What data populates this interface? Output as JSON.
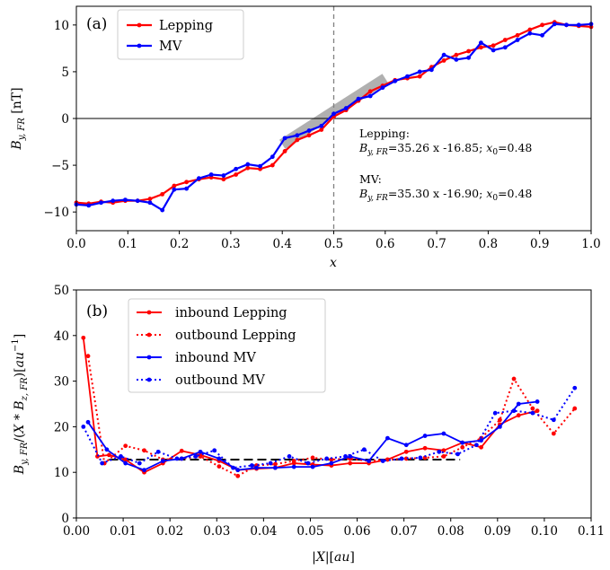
{
  "chart_data": [
    {
      "type": "line",
      "panel_label": "(a)",
      "xlabel": "x",
      "ylabel": "B_y,FR [nT]",
      "xlim": [
        0,
        1.0
      ],
      "ylim": [
        -12,
        12
      ],
      "xticks": [
        0.0,
        0.1,
        0.2,
        0.3,
        0.4,
        0.5,
        0.6,
        0.7,
        0.8,
        0.9,
        1.0
      ],
      "xtick_labels": [
        "0.0",
        "0.1",
        "0.2",
        "0.3",
        "0.4",
        "0.5",
        "0.6",
        "0.7",
        "0.8",
        "0.9",
        "1.0"
      ],
      "yticks": [
        -10,
        -5,
        0,
        5,
        10
      ],
      "ytick_labels": [
        "−10",
        "−5",
        "0",
        "5",
        "10"
      ],
      "hline_y": 0,
      "vline_x": 0.5,
      "fit_band": {
        "x": [
          0.4,
          0.6
        ],
        "color": "#b0b0b0"
      },
      "legend": {
        "position": "top-left",
        "entries": [
          "Lepping",
          "MV"
        ]
      },
      "annotations": {
        "lepping_title": "Lepping:",
        "lepping_eq_var": "B",
        "lepping_eq_sub": "y, FR",
        "lepping_eq_rest": "=35.26 x -16.85; ",
        "lepping_x0_var": "x",
        "lepping_x0_sub": "0",
        "lepping_x0_rest": "=0.48",
        "mv_title": "MV:",
        "mv_eq_var": "B",
        "mv_eq_sub": "y, FR",
        "mv_eq_rest": "=35.30 x -16.90; ",
        "mv_x0_var": "x",
        "mv_x0_sub": "0",
        "mv_x0_rest": "=0.48"
      },
      "series": [
        {
          "name": "Lepping",
          "color": "#ff0000",
          "x": [
            0.0,
            0.024,
            0.048,
            0.071,
            0.095,
            0.119,
            0.143,
            0.167,
            0.19,
            0.214,
            0.238,
            0.262,
            0.286,
            0.31,
            0.333,
            0.357,
            0.381,
            0.405,
            0.429,
            0.452,
            0.476,
            0.5,
            0.524,
            0.548,
            0.571,
            0.595,
            0.619,
            0.643,
            0.667,
            0.69,
            0.714,
            0.738,
            0.762,
            0.786,
            0.81,
            0.833,
            0.857,
            0.881,
            0.905,
            0.929,
            0.952,
            0.976,
            1.0
          ],
          "y": [
            -9.0,
            -9.1,
            -8.9,
            -9.0,
            -8.8,
            -8.8,
            -8.6,
            -8.1,
            -7.2,
            -6.8,
            -6.5,
            -6.3,
            -6.5,
            -6.0,
            -5.3,
            -5.4,
            -5.0,
            -3.5,
            -2.3,
            -1.8,
            -1.2,
            0.2,
            0.9,
            1.9,
            2.9,
            3.5,
            4.1,
            4.3,
            4.5,
            5.5,
            6.2,
            6.8,
            7.2,
            7.6,
            7.8,
            8.4,
            8.9,
            9.5,
            10.0,
            10.3,
            10.0,
            9.9,
            9.8
          ]
        },
        {
          "name": "MV",
          "color": "#0000ff",
          "x": [
            0.0,
            0.024,
            0.048,
            0.071,
            0.095,
            0.119,
            0.143,
            0.167,
            0.19,
            0.214,
            0.238,
            0.262,
            0.286,
            0.31,
            0.333,
            0.357,
            0.381,
            0.405,
            0.429,
            0.452,
            0.476,
            0.5,
            0.524,
            0.548,
            0.571,
            0.595,
            0.619,
            0.643,
            0.667,
            0.69,
            0.714,
            0.738,
            0.762,
            0.786,
            0.81,
            0.833,
            0.857,
            0.881,
            0.905,
            0.929,
            0.952,
            0.976,
            1.0
          ],
          "y": [
            -9.2,
            -9.3,
            -9.0,
            -8.8,
            -8.7,
            -8.8,
            -9.0,
            -9.8,
            -7.6,
            -7.5,
            -6.4,
            -6.0,
            -6.1,
            -5.4,
            -4.9,
            -5.1,
            -4.1,
            -2.1,
            -1.8,
            -1.3,
            -0.8,
            0.5,
            1.1,
            2.1,
            2.4,
            3.3,
            4.0,
            4.5,
            5.0,
            5.2,
            6.8,
            6.3,
            6.5,
            8.1,
            7.3,
            7.6,
            8.4,
            9.1,
            8.9,
            10.1,
            10.0,
            10.0,
            10.1
          ]
        }
      ]
    },
    {
      "type": "line",
      "panel_label": "(b)",
      "xlabel": "|X|[au]",
      "ylabel": "B_y,FR/(X*B_z,FR)[au^-1]",
      "xlim": [
        0,
        0.11
      ],
      "ylim": [
        0,
        50
      ],
      "xticks": [
        0.0,
        0.01,
        0.02,
        0.03,
        0.04,
        0.05,
        0.06,
        0.07,
        0.08,
        0.09,
        0.1,
        0.11
      ],
      "xtick_labels": [
        "0.00",
        "0.01",
        "0.02",
        "0.03",
        "0.04",
        "0.05",
        "0.06",
        "0.07",
        "0.08",
        "0.09",
        "0.10",
        "0.11"
      ],
      "yticks": [
        0,
        10,
        20,
        30,
        40,
        50
      ],
      "ytick_labels": [
        "0",
        "10",
        "20",
        "30",
        "40",
        "50"
      ],
      "reference_line": {
        "x": [
          0.007,
          0.082
        ],
        "y": 12.8,
        "style": "dashed",
        "color": "#000000"
      },
      "legend": {
        "position": "top-left",
        "entries": [
          "inbound Lepping",
          "outbound Lepping",
          "inbound MV",
          "outbound MV"
        ]
      },
      "series": [
        {
          "name": "inbound Lepping",
          "color": "#ff0000",
          "style": "solid",
          "x": [
            0.0015,
            0.0045,
            0.007,
            0.0105,
            0.0145,
            0.0185,
            0.0225,
            0.0265,
            0.0305,
            0.0345,
            0.0385,
            0.0425,
            0.0465,
            0.0505,
            0.0545,
            0.0585,
            0.0625,
            0.0665,
            0.0705,
            0.0745,
            0.0785,
            0.0825,
            0.0865,
            0.0905,
            0.0945,
            0.0985
          ],
          "y": [
            39.5,
            13.5,
            13.8,
            12.8,
            10.0,
            12.0,
            14.7,
            13.8,
            12.5,
            10.5,
            10.8,
            11.0,
            12.0,
            11.7,
            11.5,
            12.0,
            12.0,
            12.8,
            14.5,
            15.3,
            14.8,
            16.5,
            15.5,
            20.5,
            22.5,
            23.5
          ]
        },
        {
          "name": "outbound Lepping",
          "color": "#ff0000",
          "style": "dotted",
          "x": [
            0.0025,
            0.006,
            0.0105,
            0.0145,
            0.0185,
            0.0225,
            0.0265,
            0.0305,
            0.0345,
            0.0385,
            0.0425,
            0.0465,
            0.0505,
            0.0545,
            0.0585,
            0.0625,
            0.0665,
            0.0705,
            0.0745,
            0.0785,
            0.0825,
            0.0865,
            0.0905,
            0.0935,
            0.0975,
            0.102,
            0.1065
          ],
          "y": [
            35.5,
            12.0,
            15.8,
            14.8,
            12.8,
            13.0,
            13.5,
            11.3,
            9.2,
            11.5,
            11.8,
            12.5,
            13.2,
            12.8,
            13.0,
            12.5,
            12.8,
            13.0,
            13.2,
            13.5,
            15.5,
            17.5,
            21.5,
            30.5,
            24.0,
            18.5,
            24.0
          ]
        },
        {
          "name": "inbound MV",
          "color": "#0000ff",
          "style": "solid",
          "x": [
            0.0025,
            0.0065,
            0.0105,
            0.0145,
            0.0185,
            0.0225,
            0.0265,
            0.0305,
            0.0345,
            0.0385,
            0.0425,
            0.0465,
            0.0505,
            0.0545,
            0.0585,
            0.0625,
            0.0665,
            0.0705,
            0.0745,
            0.0785,
            0.0825,
            0.0865,
            0.0905,
            0.0945,
            0.0985
          ],
          "y": [
            21.0,
            15.0,
            12.0,
            10.5,
            12.5,
            13.0,
            14.5,
            13.0,
            10.5,
            11.0,
            11.0,
            11.2,
            11.2,
            12.0,
            13.5,
            12.5,
            17.5,
            16.0,
            18.0,
            18.5,
            16.5,
            17.0,
            20.0,
            25.0,
            25.5
          ]
        },
        {
          "name": "outbound MV",
          "color": "#0000ff",
          "style": "dotted",
          "x": [
            0.0015,
            0.0055,
            0.0095,
            0.0135,
            0.0175,
            0.0215,
            0.0255,
            0.0295,
            0.0335,
            0.0375,
            0.0415,
            0.0455,
            0.0495,
            0.0535,
            0.0575,
            0.0615,
            0.0655,
            0.0695,
            0.0735,
            0.0775,
            0.0815,
            0.0855,
            0.0895,
            0.0935,
            0.0975,
            0.102,
            0.1065
          ],
          "y": [
            20.0,
            12.0,
            13.5,
            12.0,
            14.5,
            13.0,
            13.5,
            14.8,
            11.0,
            11.5,
            12.0,
            13.5,
            12.0,
            13.0,
            13.5,
            15.0,
            12.5,
            13.0,
            13.2,
            14.5,
            14.0,
            16.0,
            23.0,
            23.5,
            23.0,
            21.5,
            28.5
          ]
        }
      ]
    }
  ]
}
